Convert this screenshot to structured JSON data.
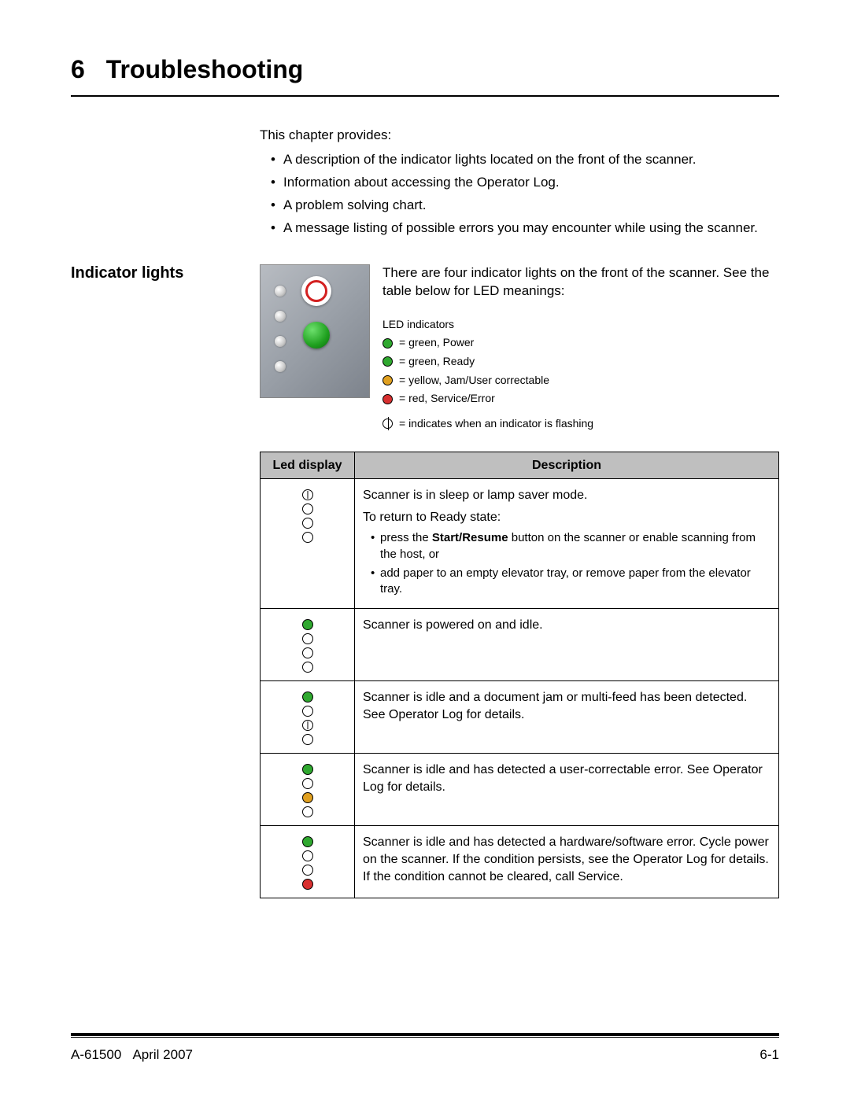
{
  "chapter": {
    "number": "6",
    "title": "Troubleshooting"
  },
  "intro": {
    "lead": "This chapter provides:",
    "items": [
      "A description of the indicator lights located on the front of the scanner.",
      "Information about accessing the Operator Log.",
      "A problem solving chart.",
      "A message listing of possible errors you may encounter while using the scanner."
    ]
  },
  "section": {
    "heading": "Indicator lights",
    "lead": "There are four indicator lights on the front of the scanner. See the table below for LED meanings:"
  },
  "legend": {
    "title": "LED indicators",
    "items": [
      {
        "color": "green",
        "text": "= green, Power"
      },
      {
        "color": "green",
        "text": "= green, Ready"
      },
      {
        "color": "yellow",
        "text": "= yellow, Jam/User correctable"
      },
      {
        "color": "red",
        "text": "= red, Service/Error"
      }
    ],
    "flash_note": "= indicates when an indicator is flashing"
  },
  "table": {
    "headers": {
      "led": "Led display",
      "desc": "Description"
    },
    "rows": [
      {
        "leds": [
          "flash",
          "off",
          "off",
          "off"
        ],
        "desc_paras": [
          "Scanner is in sleep or lamp saver mode.",
          "To return to Ready state:"
        ],
        "bullets": [
          {
            "pre": "press the ",
            "bold": "Start/Resume",
            "post": " button on the scanner or enable scanning from the host, or"
          },
          {
            "pre": "add paper to an empty elevator tray, or remove paper from the elevator tray.",
            "bold": "",
            "post": ""
          }
        ]
      },
      {
        "leds": [
          "green",
          "off",
          "off",
          "off"
        ],
        "desc_paras": [
          "Scanner is powered on and idle."
        ],
        "bullets": []
      },
      {
        "leds": [
          "green",
          "off",
          "flash",
          "off"
        ],
        "desc_paras": [
          "Scanner is idle and a document jam or multi-feed has been detected. See Operator Log for details."
        ],
        "bullets": []
      },
      {
        "leds": [
          "green",
          "off",
          "yellow",
          "off"
        ],
        "desc_paras": [
          "Scanner is idle and has detected a user-correctable error. See Operator Log for details."
        ],
        "bullets": []
      },
      {
        "leds": [
          "green",
          "off",
          "off",
          "red"
        ],
        "desc_paras": [
          "Scanner is idle and has detected a hardware/software error. Cycle power on the scanner. If the condition persists, see the Operator Log for details. If the condition cannot be cleared, call Service."
        ],
        "bullets": []
      }
    ]
  },
  "footer": {
    "left_doc": "A-61500",
    "left_date": "April 2007",
    "right": "6-1"
  },
  "colors": {
    "green": "#2fa82f",
    "yellow": "#e0a020",
    "red": "#d83030",
    "header_bg": "#bfbfbf",
    "text": "#000000",
    "background": "#ffffff"
  }
}
